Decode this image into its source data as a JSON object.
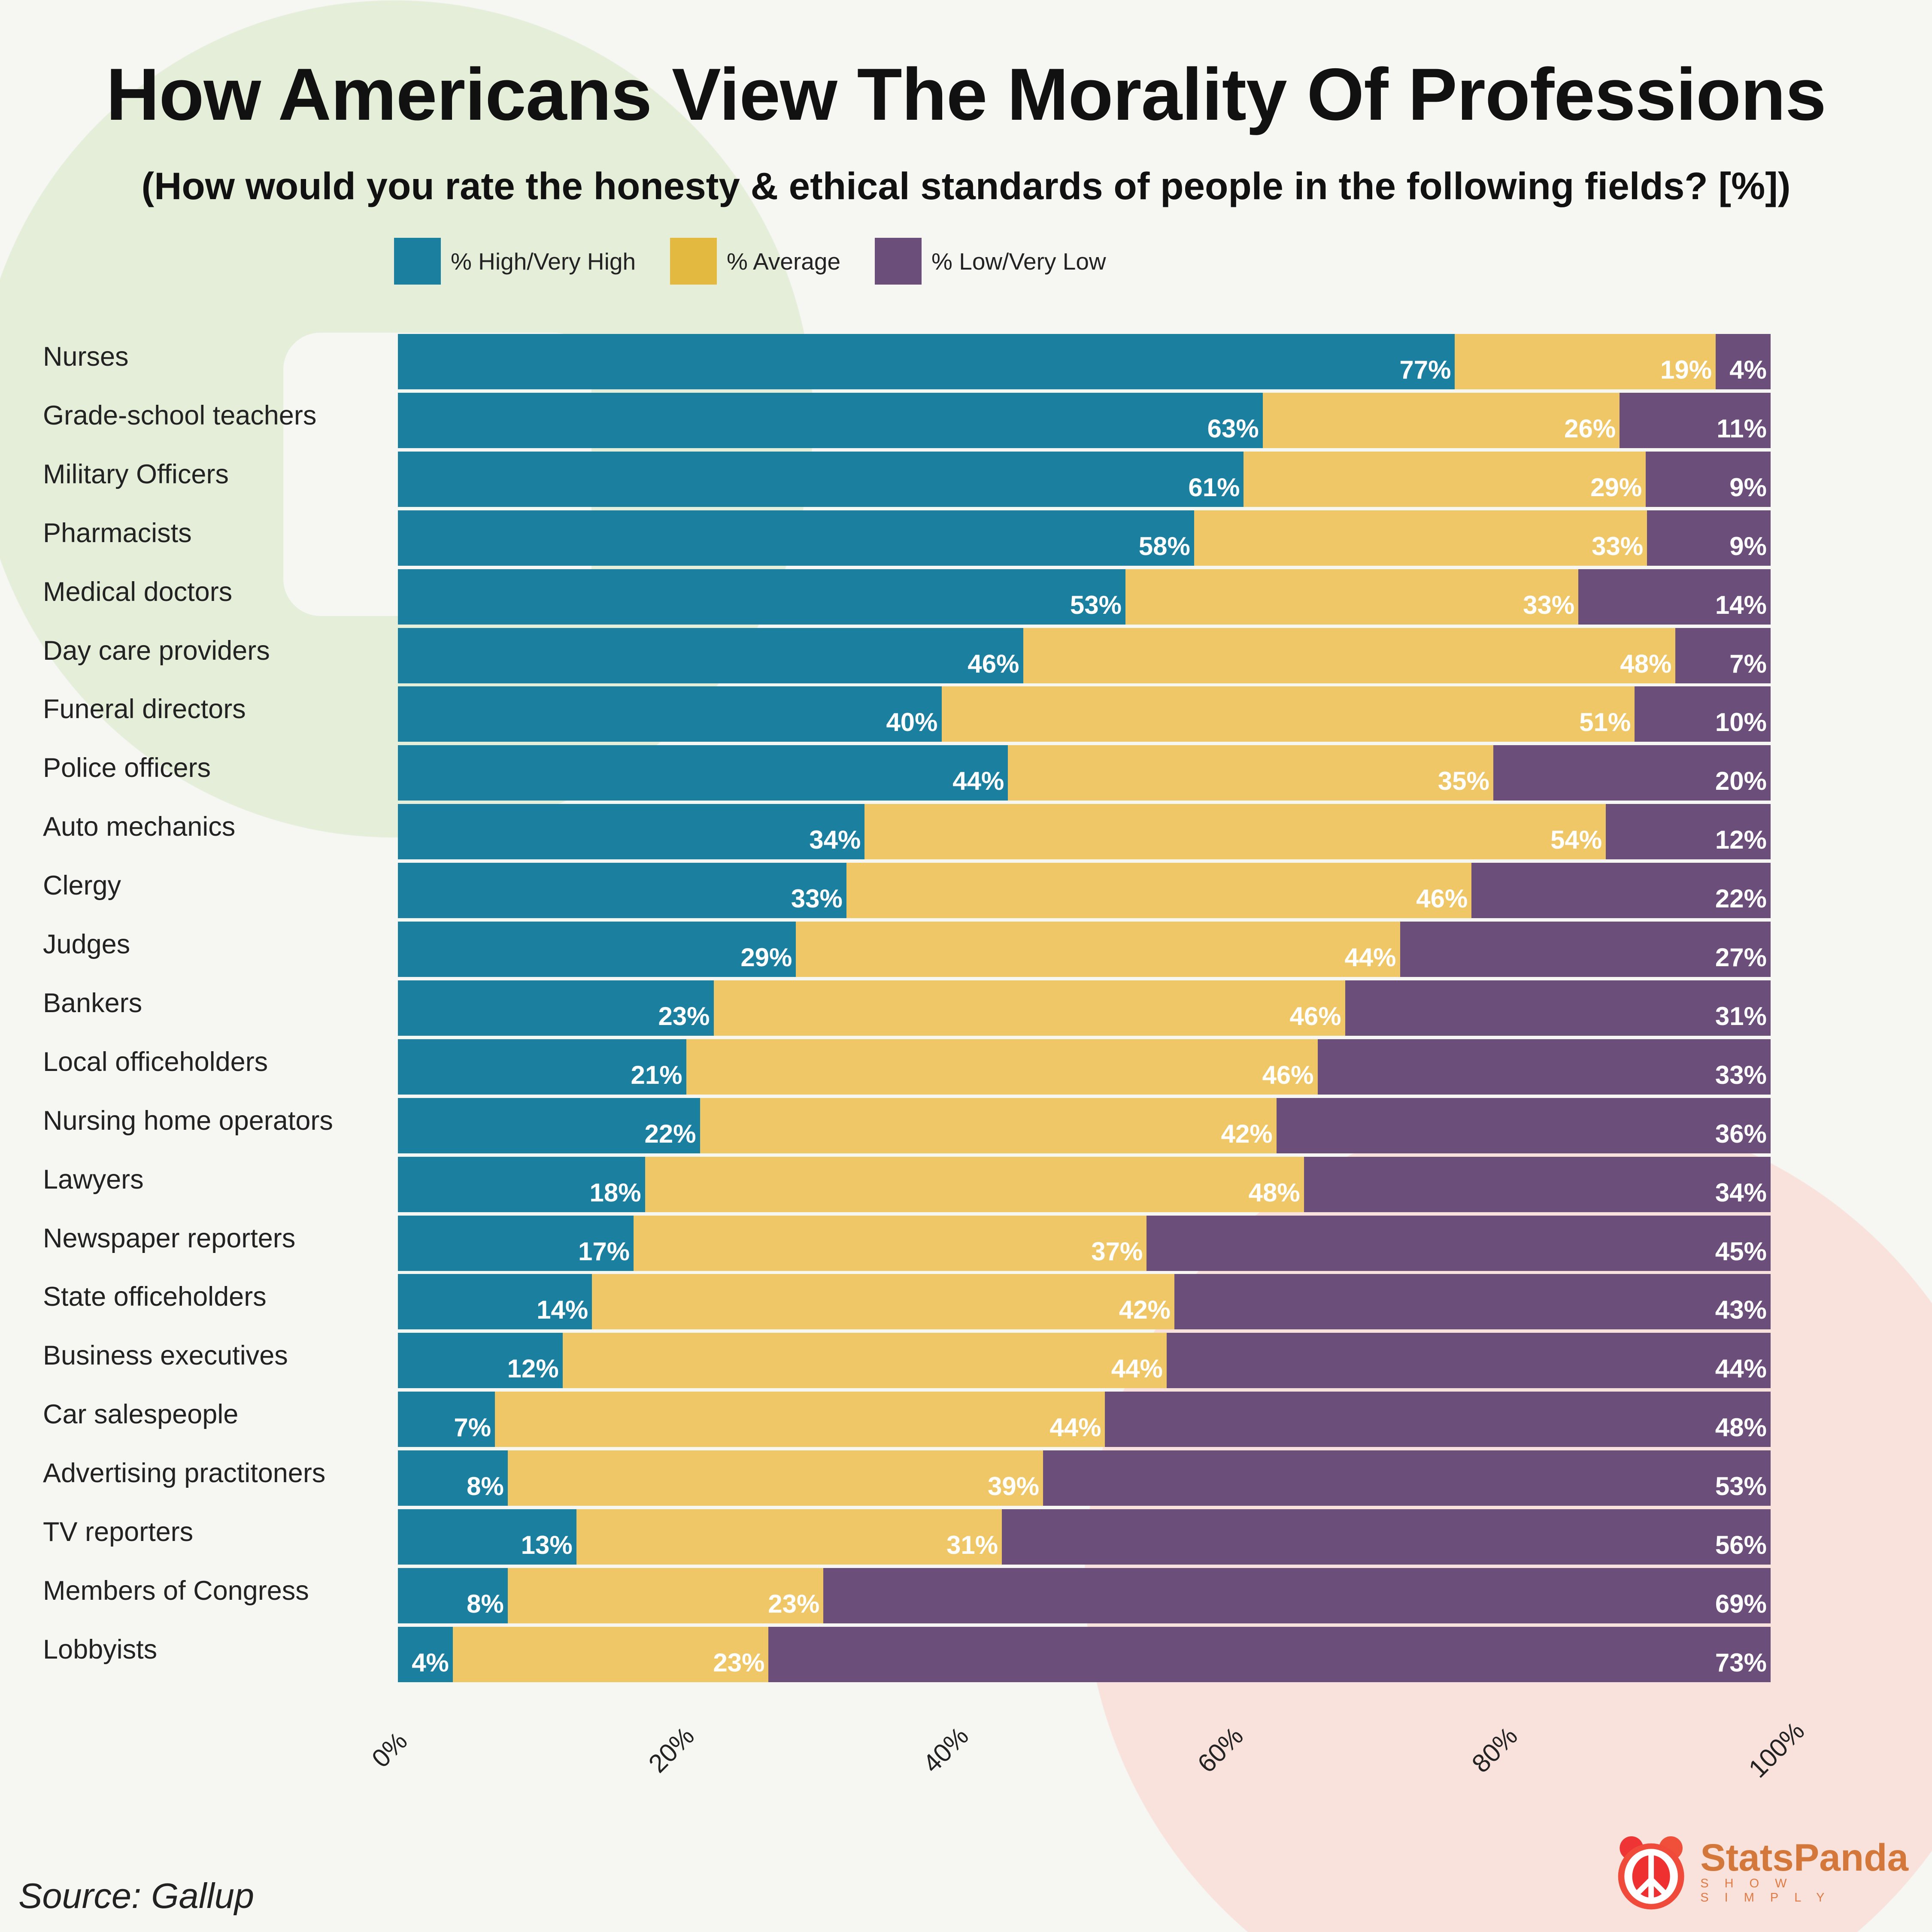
{
  "title": "How Americans View The Morality Of Professions",
  "subtitle": "(How would you rate the honesty & ethical standards of people in the following fields? [%])",
  "source": "Source: Gallup",
  "logo": {
    "name": "StatsPanda",
    "tagline": "SHOW SIMPLY"
  },
  "colors": {
    "high": "#1b7fa0",
    "average": "#efc766",
    "low": "#6b4f7a"
  },
  "chart_data": {
    "type": "bar",
    "stacked": true,
    "orientation": "horizontal",
    "title": "How Americans View The Morality Of Professions",
    "xlim": [
      0,
      100
    ],
    "xticks": [
      "0%",
      "20%",
      "40%",
      "60%",
      "80%",
      "100%"
    ],
    "legend_position": "top",
    "categories": [
      "Nurses",
      "Grade-school teachers",
      "Military Officers",
      "Pharmacists",
      "Medical doctors",
      "Day care providers",
      "Funeral directors",
      "Police officers",
      "Auto mechanics",
      "Clergy",
      "Judges",
      "Bankers",
      "Local officeholders",
      "Nursing home operators",
      "Lawyers",
      "Newspaper reporters",
      "State officeholders",
      "Business executives",
      "Car salespeople",
      "Advertising practitoners",
      "TV reporters",
      "Members of Congress",
      "Lobbyists"
    ],
    "series": [
      {
        "name": "% High/Very High",
        "values": [
          77,
          63,
          61,
          58,
          53,
          46,
          40,
          44,
          34,
          33,
          29,
          23,
          21,
          22,
          18,
          17,
          14,
          12,
          7,
          8,
          13,
          8,
          4
        ]
      },
      {
        "name": "% Average",
        "values": [
          19,
          26,
          29,
          33,
          33,
          48,
          51,
          35,
          54,
          46,
          44,
          46,
          46,
          42,
          48,
          37,
          42,
          44,
          44,
          39,
          31,
          23,
          23
        ]
      },
      {
        "name": "% Low/Very Low",
        "values": [
          4,
          11,
          9,
          9,
          14,
          7,
          10,
          20,
          12,
          22,
          27,
          31,
          33,
          36,
          34,
          45,
          43,
          44,
          48,
          53,
          56,
          69,
          73
        ]
      }
    ]
  }
}
